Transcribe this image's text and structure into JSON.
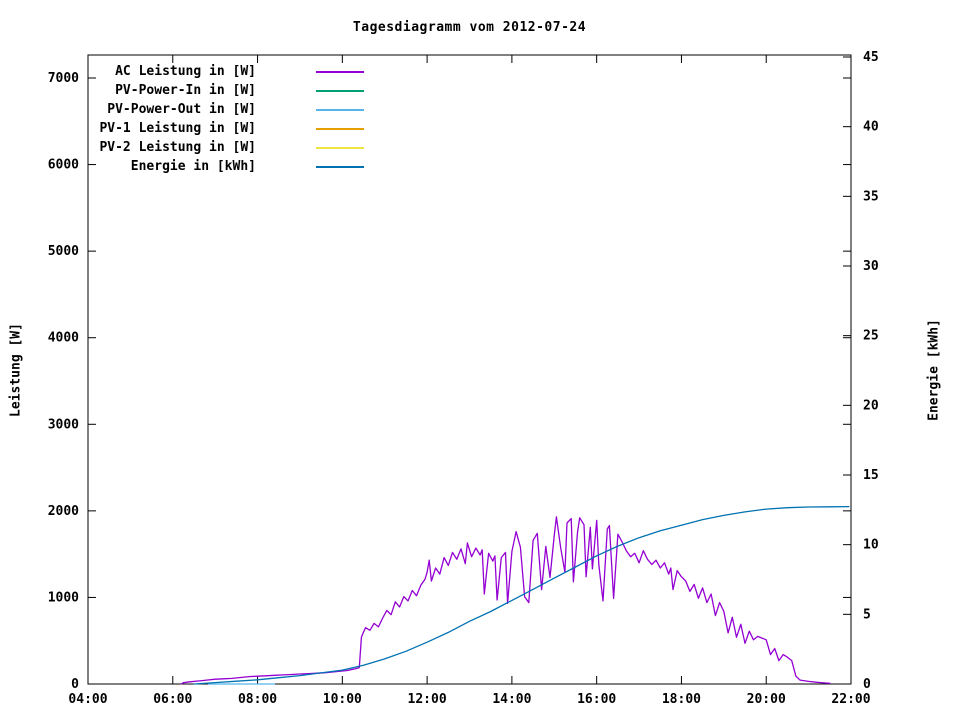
{
  "chart": {
    "title": "Tagesdiagramm vom 2012-07-24"
  },
  "axes": {
    "x": {
      "ticks": [
        {
          "hour": 4,
          "label": "04:00"
        },
        {
          "hour": 6,
          "label": "06:00"
        },
        {
          "hour": 8,
          "label": "08:00"
        },
        {
          "hour": 10,
          "label": "10:00"
        },
        {
          "hour": 12,
          "label": "12:00"
        },
        {
          "hour": 14,
          "label": "14:00"
        },
        {
          "hour": 16,
          "label": "16:00"
        },
        {
          "hour": 18,
          "label": "18:00"
        },
        {
          "hour": 20,
          "label": "20:00"
        },
        {
          "hour": 22,
          "label": "22:00"
        }
      ],
      "range_hours": [
        4,
        22
      ]
    },
    "y_left": {
      "label": "Leistung [W]",
      "ticks": [
        0,
        1000,
        2000,
        3000,
        4000,
        5000,
        6000,
        7000
      ],
      "range": [
        0,
        7260
      ]
    },
    "y_right": {
      "label": "Energie [kWh]",
      "ticks": [
        0,
        5,
        10,
        15,
        20,
        25,
        30,
        35,
        40,
        45
      ],
      "range": [
        0,
        45
      ]
    }
  },
  "legend": {
    "position": "top-left-inside",
    "items": [
      {
        "label": "AC Leistung in [W]",
        "color": "#9400d3"
      },
      {
        "label": "PV-Power-In in [W]",
        "color": "#009e73"
      },
      {
        "label": "PV-Power-Out in [W]",
        "color": "#56b4e9"
      },
      {
        "label": "PV-1 Leistung in [W]",
        "color": "#e69f00"
      },
      {
        "label": "PV-2 Leistung in [W]",
        "color": "#f0e442"
      },
      {
        "label": "Energie in [kWh]",
        "color": "#0072b2"
      }
    ]
  },
  "chart_data": {
    "type": "line",
    "title": "Tagesdiagramm vom 2012-07-24",
    "xlabel": "",
    "ylabel_left": "Leistung [W]",
    "ylabel_right": "Energie [kWh]",
    "xlim_hours": [
      4,
      22
    ],
    "ylim_left": [
      0,
      7260
    ],
    "ylim_right": [
      0,
      45
    ],
    "grid": false,
    "legend_position": "top-left inside",
    "draw_order": [
      1,
      2,
      3,
      4,
      0,
      5
    ],
    "series": [
      {
        "name": "AC Leistung in [W]",
        "color": "#9400d3",
        "axis": "left",
        "unit": "W",
        "points": [
          [
            6.2,
            0
          ],
          [
            6.25,
            15
          ],
          [
            6.4,
            25
          ],
          [
            6.6,
            35
          ],
          [
            6.8,
            45
          ],
          [
            7.0,
            55
          ],
          [
            7.2,
            60
          ],
          [
            7.4,
            65
          ],
          [
            7.6,
            75
          ],
          [
            7.8,
            85
          ],
          [
            8.0,
            90
          ],
          [
            8.2,
            95
          ],
          [
            8.4,
            100
          ],
          [
            8.6,
            105
          ],
          [
            8.8,
            110
          ],
          [
            9.0,
            115
          ],
          [
            9.2,
            120
          ],
          [
            9.4,
            125
          ],
          [
            9.6,
            130
          ],
          [
            9.8,
            140
          ],
          [
            10.0,
            150
          ],
          [
            10.1,
            155
          ],
          [
            10.2,
            165
          ],
          [
            10.3,
            175
          ],
          [
            10.4,
            190
          ],
          [
            10.45,
            540
          ],
          [
            10.5,
            600
          ],
          [
            10.55,
            650
          ],
          [
            10.65,
            620
          ],
          [
            10.75,
            700
          ],
          [
            10.85,
            660
          ],
          [
            10.95,
            760
          ],
          [
            11.05,
            850
          ],
          [
            11.15,
            800
          ],
          [
            11.25,
            950
          ],
          [
            11.35,
            890
          ],
          [
            11.45,
            1010
          ],
          [
            11.55,
            960
          ],
          [
            11.65,
            1080
          ],
          [
            11.75,
            1020
          ],
          [
            11.85,
            1140
          ],
          [
            11.95,
            1210
          ],
          [
            12.0,
            1290
          ],
          [
            12.05,
            1430
          ],
          [
            12.1,
            1190
          ],
          [
            12.2,
            1340
          ],
          [
            12.3,
            1270
          ],
          [
            12.4,
            1460
          ],
          [
            12.5,
            1370
          ],
          [
            12.6,
            1520
          ],
          [
            12.7,
            1440
          ],
          [
            12.8,
            1560
          ],
          [
            12.9,
            1390
          ],
          [
            12.95,
            1630
          ],
          [
            13.05,
            1470
          ],
          [
            13.15,
            1570
          ],
          [
            13.25,
            1490
          ],
          [
            13.3,
            1550
          ],
          [
            13.35,
            1040
          ],
          [
            13.45,
            1510
          ],
          [
            13.55,
            1420
          ],
          [
            13.6,
            1480
          ],
          [
            13.65,
            970
          ],
          [
            13.75,
            1460
          ],
          [
            13.85,
            1520
          ],
          [
            13.9,
            930
          ],
          [
            14.0,
            1530
          ],
          [
            14.1,
            1760
          ],
          [
            14.2,
            1580
          ],
          [
            14.3,
            1010
          ],
          [
            14.4,
            940
          ],
          [
            14.5,
            1660
          ],
          [
            14.6,
            1740
          ],
          [
            14.7,
            1090
          ],
          [
            14.8,
            1590
          ],
          [
            14.9,
            1230
          ],
          [
            15.0,
            1720
          ],
          [
            15.05,
            1930
          ],
          [
            15.15,
            1580
          ],
          [
            15.25,
            1290
          ],
          [
            15.3,
            1860
          ],
          [
            15.4,
            1910
          ],
          [
            15.45,
            1180
          ],
          [
            15.55,
            1760
          ],
          [
            15.6,
            1920
          ],
          [
            15.7,
            1840
          ],
          [
            15.75,
            1240
          ],
          [
            15.85,
            1810
          ],
          [
            15.9,
            1330
          ],
          [
            16.0,
            1890
          ],
          [
            16.05,
            1380
          ],
          [
            16.15,
            960
          ],
          [
            16.25,
            1790
          ],
          [
            16.3,
            1830
          ],
          [
            16.4,
            990
          ],
          [
            16.5,
            1730
          ],
          [
            16.6,
            1640
          ],
          [
            16.7,
            1540
          ],
          [
            16.8,
            1470
          ],
          [
            16.9,
            1510
          ],
          [
            17.0,
            1400
          ],
          [
            17.1,
            1540
          ],
          [
            17.2,
            1440
          ],
          [
            17.3,
            1380
          ],
          [
            17.4,
            1430
          ],
          [
            17.5,
            1340
          ],
          [
            17.6,
            1400
          ],
          [
            17.7,
            1270
          ],
          [
            17.75,
            1340
          ],
          [
            17.8,
            1090
          ],
          [
            17.9,
            1310
          ],
          [
            18.0,
            1240
          ],
          [
            18.1,
            1190
          ],
          [
            18.2,
            1070
          ],
          [
            18.3,
            1150
          ],
          [
            18.4,
            990
          ],
          [
            18.5,
            1110
          ],
          [
            18.6,
            940
          ],
          [
            18.7,
            1040
          ],
          [
            18.8,
            790
          ],
          [
            18.9,
            940
          ],
          [
            19.0,
            840
          ],
          [
            19.1,
            590
          ],
          [
            19.2,
            770
          ],
          [
            19.3,
            540
          ],
          [
            19.4,
            690
          ],
          [
            19.5,
            470
          ],
          [
            19.6,
            610
          ],
          [
            19.7,
            510
          ],
          [
            19.8,
            550
          ],
          [
            19.9,
            530
          ],
          [
            20.0,
            510
          ],
          [
            20.1,
            340
          ],
          [
            20.2,
            410
          ],
          [
            20.3,
            270
          ],
          [
            20.4,
            340
          ],
          [
            20.5,
            310
          ],
          [
            20.6,
            270
          ],
          [
            20.7,
            90
          ],
          [
            20.8,
            45
          ],
          [
            21.0,
            30
          ],
          [
            21.2,
            20
          ],
          [
            21.4,
            12
          ],
          [
            21.5,
            8
          ]
        ]
      },
      {
        "name": "PV-Power-In in [W]",
        "color": "#009e73",
        "axis": "left",
        "unit": "W",
        "points": [],
        "note": "not visually distinguishable in plot (hidden behind AC curve)"
      },
      {
        "name": "PV-Power-Out in [W]",
        "color": "#56b4e9",
        "axis": "left",
        "unit": "W",
        "points": [
          [
            6.85,
            0
          ],
          [
            8.4,
            0
          ]
        ],
        "note": "visible only as near-zero segment on the baseline in the morning"
      },
      {
        "name": "PV-1 Leistung in [W]",
        "color": "#e69f00",
        "axis": "left",
        "unit": "W",
        "points": [],
        "note": "not visually distinguishable in plot (hidden behind AC curve)"
      },
      {
        "name": "PV-2 Leistung in [W]",
        "color": "#f0e442",
        "axis": "left",
        "unit": "W",
        "points": [],
        "note": "not visually distinguishable in plot (hidden behind AC curve)"
      },
      {
        "name": "Energie in [kWh]",
        "color": "#0072b2",
        "axis": "right",
        "unit": "kWh",
        "points": [
          [
            6.5,
            0.0
          ],
          [
            7.0,
            0.1
          ],
          [
            7.5,
            0.2
          ],
          [
            8.0,
            0.3
          ],
          [
            8.5,
            0.45
          ],
          [
            9.0,
            0.6
          ],
          [
            9.5,
            0.8
          ],
          [
            10.0,
            1.0
          ],
          [
            10.5,
            1.35
          ],
          [
            11.0,
            1.8
          ],
          [
            11.5,
            2.35
          ],
          [
            12.0,
            3.0
          ],
          [
            12.5,
            3.7
          ],
          [
            13.0,
            4.5
          ],
          [
            13.5,
            5.2
          ],
          [
            14.0,
            6.0
          ],
          [
            14.5,
            6.8
          ],
          [
            15.0,
            7.6
          ],
          [
            15.5,
            8.4
          ],
          [
            16.0,
            9.2
          ],
          [
            16.5,
            9.9
          ],
          [
            17.0,
            10.5
          ],
          [
            17.5,
            11.0
          ],
          [
            18.0,
            11.4
          ],
          [
            18.5,
            11.8
          ],
          [
            19.0,
            12.1
          ],
          [
            19.5,
            12.35
          ],
          [
            20.0,
            12.55
          ],
          [
            20.5,
            12.65
          ],
          [
            21.0,
            12.7
          ],
          [
            21.5,
            12.72
          ],
          [
            21.95,
            12.73
          ]
        ]
      }
    ]
  }
}
